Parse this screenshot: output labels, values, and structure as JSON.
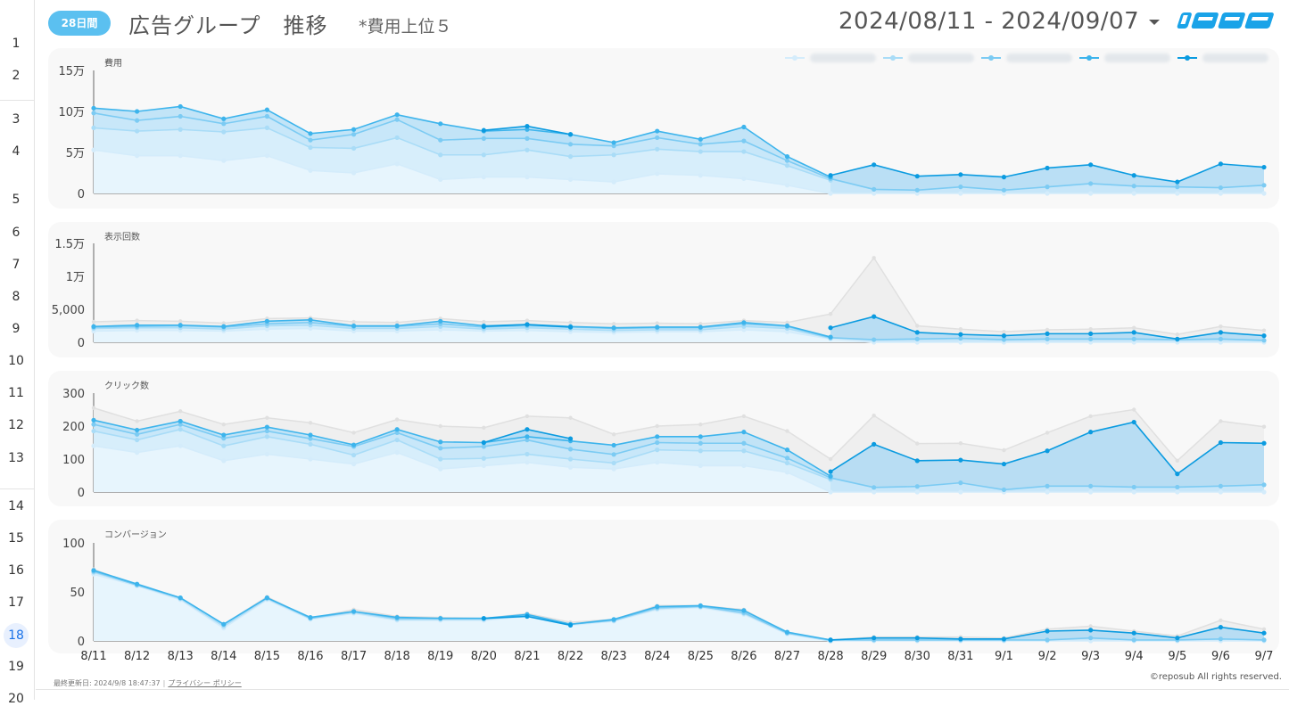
{
  "gutter": {
    "rows": [
      {
        "label": "1",
        "y": 50
      },
      {
        "label": "2",
        "y": 86
      },
      {
        "label": "3",
        "y": 135
      },
      {
        "label": "4",
        "y": 171
      },
      {
        "label": "5",
        "y": 225
      },
      {
        "label": "6",
        "y": 262
      },
      {
        "label": "7",
        "y": 298
      },
      {
        "label": "8",
        "y": 334
      },
      {
        "label": "9",
        "y": 370
      },
      {
        "label": "10",
        "y": 406
      },
      {
        "label": "11",
        "y": 442
      },
      {
        "label": "12",
        "y": 478
      },
      {
        "label": "13",
        "y": 515
      },
      {
        "label": "14",
        "y": 569
      },
      {
        "label": "15",
        "y": 605
      },
      {
        "label": "16",
        "y": 641
      },
      {
        "label": "17",
        "y": 677
      },
      {
        "label": "18",
        "y": 713,
        "active": true
      },
      {
        "label": "19",
        "y": 749
      },
      {
        "label": "20",
        "y": 785
      }
    ]
  },
  "header": {
    "badge": "28日間",
    "title": "広告グループ　推移",
    "subtitle": "*費用上位５",
    "date_range": "2024/08/11 - 2024/09/07",
    "logo_alt": "レポサブ"
  },
  "colors": {
    "series": [
      "#d4ecfb",
      "#a9dcf7",
      "#7ccbf3",
      "#3db4ec",
      "#0b9be0"
    ],
    "grey": "#e8e8e8",
    "greyLine": "#e0e0e0",
    "badge": "#5bc0f0"
  },
  "x_labels": [
    "8/11",
    "8/12",
    "8/13",
    "8/14",
    "8/15",
    "8/16",
    "8/17",
    "8/18",
    "8/19",
    "8/20",
    "8/21",
    "8/22",
    "8/23",
    "8/24",
    "8/25",
    "8/26",
    "8/27",
    "8/28",
    "8/29",
    "8/30",
    "8/31",
    "9/1",
    "9/2",
    "9/3",
    "9/4",
    "9/5",
    "9/6",
    "9/7"
  ],
  "chart_data": [
    {
      "type": "area",
      "title": "費用",
      "yticks": [
        "0",
        "5万",
        "10万",
        "15万"
      ],
      "ylim": [
        0,
        150000
      ],
      "legend": [
        "",
        "",
        "",
        "",
        ""
      ],
      "grey_total": null,
      "series": [
        {
          "values": [
            53000,
            46000,
            46000,
            40000,
            46000,
            28000,
            25000,
            36000,
            17000,
            20000,
            20000,
            17000,
            14000,
            24000,
            22000,
            18000,
            10000,
            0,
            0,
            0,
            0,
            0,
            0,
            0,
            0,
            0,
            0,
            0
          ]
        },
        {
          "values": [
            80000,
            76000,
            78000,
            75000,
            80000,
            56000,
            55000,
            68000,
            47000,
            47000,
            53000,
            45000,
            47000,
            54000,
            51000,
            51000,
            34000,
            16000,
            null,
            null,
            null,
            null,
            null,
            null,
            null,
            null,
            null,
            null
          ]
        },
        {
          "values": [
            98000,
            89000,
            94000,
            85000,
            94000,
            65000,
            72000,
            90000,
            65000,
            67000,
            67000,
            60000,
            58000,
            68000,
            60000,
            64000,
            40000,
            18000,
            5000,
            4000,
            8000,
            4000,
            8000,
            12000,
            9000,
            8000,
            7000,
            10000
          ]
        },
        {
          "values": [
            104000,
            100000,
            106000,
            91000,
            102000,
            73000,
            78000,
            96000,
            85000,
            76000,
            78000,
            72000,
            62000,
            76000,
            66000,
            81000,
            45000,
            20000,
            null,
            null,
            null,
            null,
            null,
            null,
            null,
            null,
            null,
            null
          ]
        },
        {
          "values": [
            null,
            null,
            null,
            null,
            null,
            null,
            null,
            null,
            null,
            77000,
            82000,
            72000,
            null,
            null,
            null,
            null,
            null,
            22000,
            35000,
            21000,
            23000,
            20000,
            31000,
            35000,
            22000,
            14000,
            36000,
            32000
          ]
        }
      ]
    },
    {
      "type": "area",
      "title": "表示回数",
      "yticks": [
        "0",
        "5,000",
        "1万",
        "1.5万"
      ],
      "ylim": [
        0,
        15000
      ],
      "grey_total": [
        3100,
        3300,
        3200,
        2900,
        3600,
        3700,
        3100,
        3000,
        3600,
        3100,
        3300,
        3000,
        2800,
        2900,
        2800,
        3300,
        3000,
        4300,
        12800,
        2500,
        2000,
        1600,
        1900,
        2000,
        2200,
        1200,
        2400,
        1800
      ],
      "series": [
        {
          "values": [
            1700,
            1800,
            1800,
            1700,
            2000,
            2100,
            1700,
            1700,
            1900,
            1700,
            1800,
            1600,
            1500,
            1600,
            1600,
            1900,
            1600,
            500,
            0,
            0,
            0,
            0,
            0,
            0,
            0,
            0,
            0,
            0
          ]
        },
        {
          "values": [
            2100,
            2200,
            2200,
            2000,
            2500,
            2600,
            2100,
            2100,
            2400,
            2000,
            2200,
            2000,
            1800,
            1900,
            1900,
            2400,
            2100,
            600,
            null,
            null,
            null,
            null,
            null,
            null,
            null,
            null,
            null,
            null
          ]
        },
        {
          "values": [
            2300,
            2400,
            2500,
            2300,
            2800,
            3000,
            2400,
            2400,
            2800,
            2300,
            2500,
            2300,
            2100,
            2200,
            2200,
            2800,
            2400,
            700,
            400,
            500,
            600,
            400,
            500,
            500,
            500,
            400,
            500,
            300
          ]
        },
        {
          "values": [
            2400,
            2600,
            2600,
            2400,
            3200,
            3400,
            2500,
            2500,
            3200,
            2500,
            2700,
            2400,
            2200,
            2300,
            2300,
            3000,
            2500,
            800,
            null,
            null,
            null,
            null,
            null,
            null,
            null,
            null,
            null,
            null
          ]
        },
        {
          "values": [
            null,
            null,
            null,
            null,
            null,
            null,
            null,
            null,
            null,
            2400,
            2700,
            2300,
            null,
            null,
            null,
            null,
            null,
            2200,
            3900,
            1500,
            1200,
            1000,
            1300,
            1300,
            1500,
            500,
            1500,
            1000
          ]
        }
      ]
    },
    {
      "type": "area",
      "title": "クリック数",
      "yticks": [
        "0",
        "100",
        "200",
        "300"
      ],
      "ylim": [
        0,
        300
      ],
      "grey_total": [
        255,
        215,
        245,
        205,
        225,
        210,
        180,
        220,
        200,
        195,
        230,
        225,
        175,
        200,
        205,
        230,
        185,
        100,
        232,
        147,
        148,
        127,
        180,
        230,
        250,
        95,
        215,
        198
      ],
      "series": [
        {
          "values": [
            140,
            120,
            140,
            95,
            115,
            100,
            85,
            120,
            70,
            80,
            90,
            75,
            70,
            90,
            80,
            80,
            60,
            0,
            0,
            0,
            0,
            0,
            0,
            0,
            0,
            0,
            0,
            0
          ]
        },
        {
          "values": [
            185,
            158,
            190,
            140,
            168,
            145,
            112,
            158,
            100,
            102,
            115,
            100,
            88,
            128,
            125,
            125,
            88,
            38,
            null,
            null,
            null,
            null,
            null,
            null,
            null,
            null,
            null,
            null
          ]
        },
        {
          "values": [
            205,
            175,
            205,
            163,
            185,
            162,
            138,
            180,
            133,
            138,
            158,
            130,
            114,
            150,
            148,
            148,
            103,
            43,
            14,
            17,
            28,
            7,
            18,
            18,
            15,
            15,
            18,
            22
          ]
        },
        {
          "values": [
            218,
            188,
            215,
            173,
            197,
            173,
            143,
            190,
            152,
            150,
            168,
            155,
            142,
            168,
            168,
            182,
            128,
            48,
            null,
            null,
            null,
            null,
            null,
            null,
            null,
            null,
            null,
            null
          ]
        },
        {
          "values": [
            null,
            null,
            null,
            null,
            null,
            null,
            null,
            null,
            null,
            150,
            190,
            162,
            null,
            null,
            null,
            null,
            null,
            62,
            145,
            95,
            97,
            85,
            125,
            182,
            212,
            55,
            150,
            148
          ]
        }
      ]
    },
    {
      "type": "area",
      "title": "コンバージョン",
      "yticks": [
        "0",
        "50",
        "100"
      ],
      "ylim": [
        0,
        100
      ],
      "grey_total": [
        73,
        57,
        44,
        17,
        45,
        23,
        32,
        25,
        24,
        23,
        28,
        19,
        22,
        36,
        36,
        32,
        8,
        1,
        4,
        4,
        4,
        3,
        12,
        15,
        10,
        5,
        21,
        12
      ],
      "series": [
        {
          "values": [
            68,
            56,
            42,
            13,
            42,
            22,
            28,
            21,
            21,
            21,
            25,
            16,
            20,
            32,
            34,
            27,
            7,
            0,
            0,
            0,
            0,
            0,
            0,
            0,
            0,
            0,
            0,
            0
          ]
        },
        {
          "values": [
            70,
            57,
            43,
            15,
            43,
            23,
            29,
            22,
            22,
            22,
            26,
            17,
            21,
            33,
            35,
            28,
            8,
            0,
            null,
            null,
            null,
            null,
            null,
            null,
            null,
            null,
            null,
            null
          ]
        },
        {
          "values": [
            71,
            57,
            44,
            17,
            44,
            23,
            30,
            23,
            23,
            23,
            26,
            17,
            21,
            34,
            35,
            29,
            8,
            1,
            1,
            1,
            1,
            1,
            1,
            3,
            1,
            1,
            2,
            1
          ]
        },
        {
          "values": [
            72,
            58,
            44,
            17,
            44,
            24,
            30,
            24,
            23,
            23,
            27,
            17,
            22,
            35,
            36,
            31,
            9,
            1,
            null,
            null,
            null,
            null,
            null,
            null,
            null,
            null,
            null,
            null
          ]
        },
        {
          "values": [
            null,
            null,
            null,
            null,
            null,
            null,
            null,
            null,
            null,
            23,
            25,
            16,
            null,
            null,
            null,
            null,
            null,
            1,
            3,
            3,
            2,
            2,
            10,
            11,
            8,
            3,
            14,
            8
          ]
        }
      ]
    }
  ],
  "footer": {
    "updated": "最終更新日: 2024/9/8 18:47:37",
    "separator": "|",
    "privacy": "プライバシー ポリシー",
    "copyright": "©reposub All rights reserved."
  }
}
